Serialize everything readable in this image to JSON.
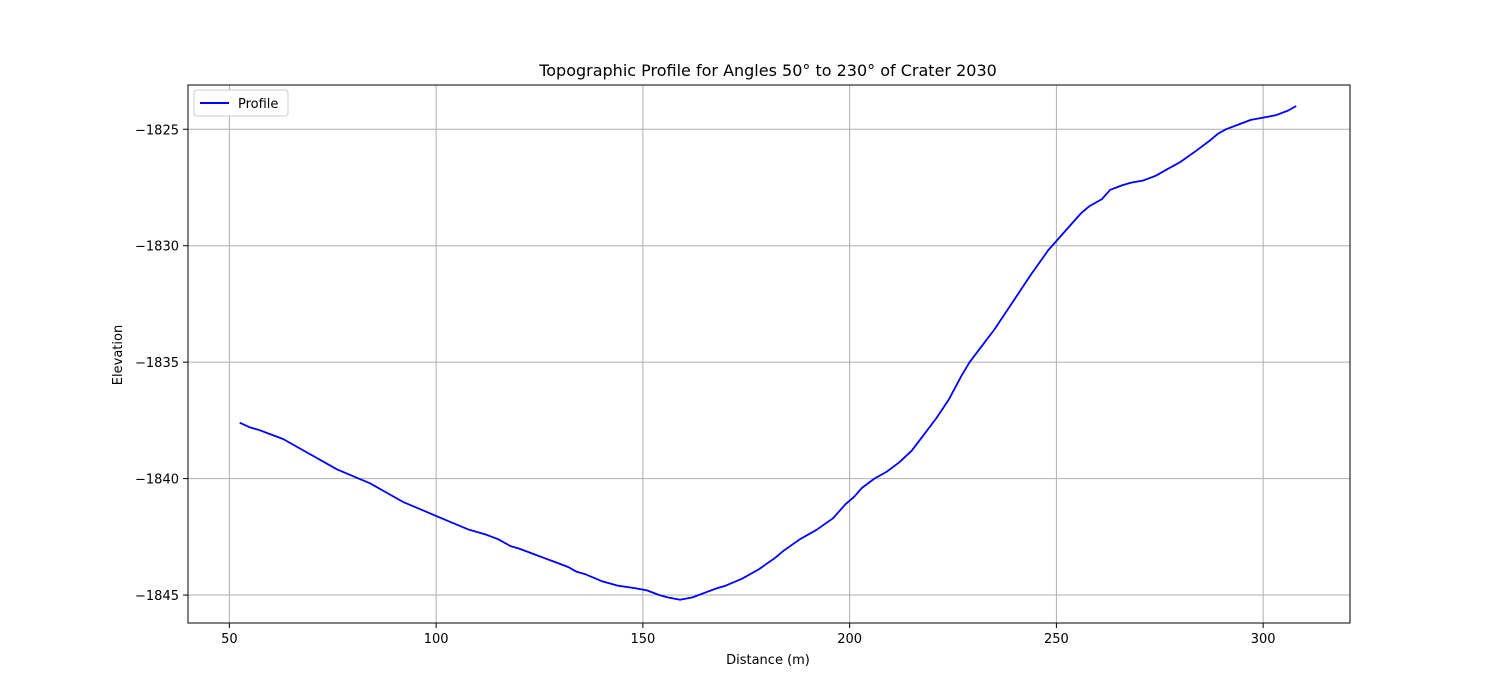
{
  "chart_data": {
    "type": "line",
    "title": "Topographic Profile for Angles 50° to 230° of Crater 2030",
    "xlabel": "Distance (m)",
    "ylabel": "Elevation",
    "xlim": [
      40,
      321
    ],
    "ylim": [
      -1846.2,
      -1823.1
    ],
    "xticks": [
      50,
      100,
      150,
      200,
      250,
      300
    ],
    "yticks": [
      -1825,
      -1830,
      -1835,
      -1840,
      -1845
    ],
    "xtick_labels": [
      "50",
      "100",
      "150",
      "200",
      "250",
      "300"
    ],
    "ytick_labels": [
      "−1825",
      "−1830",
      "−1835",
      "−1840",
      "−1845"
    ],
    "grid": true,
    "legend": "top-left",
    "series": [
      {
        "name": "Profile",
        "color": "#0000ff",
        "x": [
          52.5,
          55,
          57,
          60,
          63,
          66,
          69,
          71,
          73,
          76,
          80,
          84,
          88,
          92,
          96,
          100,
          104,
          108,
          112,
          115,
          118,
          120,
          123,
          126,
          129,
          132,
          134,
          136,
          140,
          144,
          148,
          151,
          154,
          156,
          159,
          162,
          165,
          168,
          170,
          174,
          178,
          182,
          184,
          188,
          192,
          196,
          199,
          201,
          203,
          206,
          209,
          212,
          215,
          218,
          221,
          224,
          227,
          229,
          232,
          235,
          238,
          241,
          244,
          246,
          248,
          251,
          254,
          256,
          258,
          261,
          263,
          266,
          268,
          271,
          274,
          277,
          280,
          284,
          287,
          289,
          291,
          294,
          297,
          300,
          303,
          306,
          308
        ],
        "y": [
          -1837.6,
          -1837.8,
          -1837.9,
          -1838.1,
          -1838.3,
          -1838.6,
          -1838.9,
          -1839.1,
          -1839.3,
          -1839.6,
          -1839.9,
          -1840.2,
          -1840.6,
          -1841.0,
          -1841.3,
          -1841.6,
          -1841.9,
          -1842.2,
          -1842.4,
          -1842.6,
          -1842.9,
          -1843.0,
          -1843.2,
          -1843.4,
          -1843.6,
          -1843.8,
          -1844.0,
          -1844.1,
          -1844.4,
          -1844.6,
          -1844.7,
          -1844.8,
          -1845.0,
          -1845.1,
          -1845.2,
          -1845.1,
          -1844.9,
          -1844.7,
          -1844.6,
          -1844.3,
          -1843.9,
          -1843.4,
          -1843.1,
          -1842.6,
          -1842.2,
          -1841.7,
          -1841.1,
          -1840.8,
          -1840.4,
          -1840.0,
          -1839.7,
          -1839.3,
          -1838.8,
          -1838.1,
          -1837.4,
          -1836.6,
          -1835.6,
          -1835.0,
          -1834.3,
          -1833.6,
          -1832.8,
          -1832.0,
          -1831.2,
          -1830.7,
          -1830.2,
          -1829.6,
          -1829.0,
          -1828.6,
          -1828.3,
          -1828.0,
          -1827.6,
          -1827.4,
          -1827.3,
          -1827.2,
          -1827.0,
          -1826.7,
          -1826.4,
          -1825.9,
          -1825.5,
          -1825.2,
          -1825.0,
          -1824.8,
          -1824.6,
          -1824.5,
          -1824.4,
          -1824.2,
          -1824.0
        ]
      }
    ]
  }
}
